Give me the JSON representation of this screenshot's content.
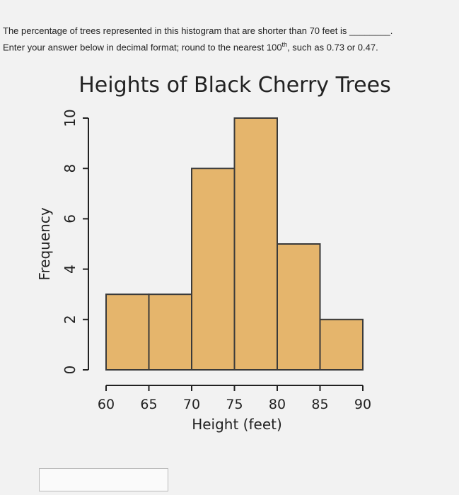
{
  "question": {
    "line1": "The percentage of trees represented in this histogram that are shorter than 70 feet is ________.",
    "line2_before": "Enter your answer below in decimal format; round to the nearest 100",
    "line2_sup": "th",
    "line2_after": ", such as 0.73 or 0.47."
  },
  "chart_data": {
    "type": "histogram",
    "title": "Heights of Black Cherry Trees",
    "xlabel": "Height (feet)",
    "ylabel": "Frequency",
    "bins": [
      60,
      65,
      70,
      75,
      80,
      85,
      90
    ],
    "values": [
      3,
      3,
      8,
      10,
      5,
      2
    ],
    "color": "#e5b56c",
    "edgecolor": "#3a3a3a",
    "xlim": [
      60,
      90
    ],
    "xticks": [
      60,
      65,
      70,
      75,
      80,
      85,
      90
    ],
    "ylim": [
      0,
      10
    ],
    "yticks": [
      0,
      2,
      4,
      6,
      8,
      10
    ]
  }
}
